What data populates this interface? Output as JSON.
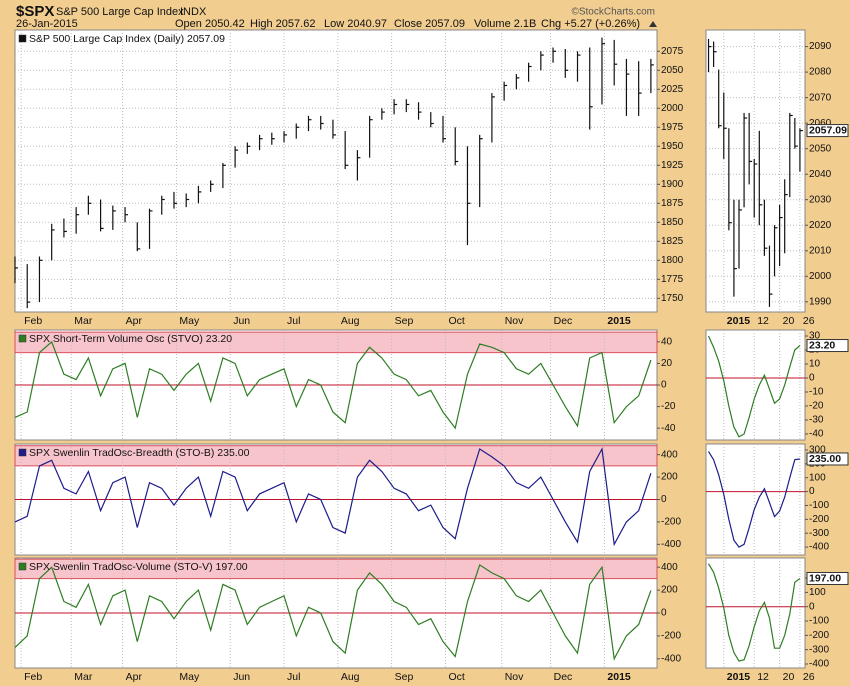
{
  "header": {
    "symbol": "$SPX",
    "name": "S&P 500 Large Cap Index",
    "exchange": "INDX",
    "credit": "©StockCharts.com",
    "date": "26-Jan-2015",
    "quote": [
      "Open 2050.42",
      "High 2057.62",
      "Low 2040.97",
      "Close 2057.09",
      "Volume 2.1B",
      "Chg +5.27 (+0.26%)"
    ]
  },
  "chart_data": [
    {
      "type": "ohlc",
      "title": "S&P 500 Large Cap Index (Daily) 2057.09",
      "color": "#111111",
      "grid": true,
      "xlim": [
        0,
        52.5
      ],
      "ylim": [
        1732,
        2103
      ],
      "xticks": [
        {
          "value": 0.5,
          "label": "Feb"
        },
        {
          "value": 4.6,
          "label": "Mar"
        },
        {
          "value": 8.8,
          "label": "Apr"
        },
        {
          "value": 13.2,
          "label": "May"
        },
        {
          "value": 17.6,
          "label": "Jun"
        },
        {
          "value": 22,
          "label": "Jul"
        },
        {
          "value": 26.4,
          "label": "Aug"
        },
        {
          "value": 30.8,
          "label": "Sep"
        },
        {
          "value": 35.2,
          "label": "Oct"
        },
        {
          "value": 39.8,
          "label": "Nov"
        },
        {
          "value": 43.8,
          "label": "Dec"
        },
        {
          "value": 48.2,
          "label": "2015"
        }
      ],
      "yticks": [
        1750,
        1775,
        1800,
        1825,
        1850,
        1875,
        1900,
        1925,
        1950,
        1975,
        2000,
        2025,
        2050,
        2075
      ],
      "x": [
        0,
        1,
        2,
        3,
        4,
        5,
        6,
        7,
        8,
        9,
        10,
        11,
        12,
        13,
        14,
        15,
        16,
        17,
        18,
        19,
        20,
        21,
        22,
        23,
        24,
        25,
        26,
        27,
        28,
        29,
        30,
        31,
        32,
        33,
        34,
        35,
        36,
        37,
        38,
        39,
        40,
        41,
        42,
        43,
        44,
        45,
        46,
        47,
        48,
        49,
        50,
        51,
        52
      ],
      "high": [
        1805,
        1795,
        1805,
        1848,
        1855,
        1870,
        1885,
        1880,
        1872,
        1870,
        1850,
        1868,
        1885,
        1890,
        1888,
        1898,
        1905,
        1928,
        1950,
        1955,
        1965,
        1968,
        1970,
        1980,
        1990,
        1990,
        1985,
        1970,
        1945,
        1990,
        2000,
        2012,
        2012,
        2008,
        1995,
        1990,
        1975,
        1950,
        1965,
        2020,
        2035,
        2045,
        2060,
        2075,
        2080,
        2078,
        2075,
        2080,
        2093,
        2090,
        2065,
        2062,
        2065
      ],
      "low": [
        1770,
        1737,
        1745,
        1800,
        1830,
        1835,
        1860,
        1838,
        1840,
        1850,
        1812,
        1815,
        1860,
        1868,
        1870,
        1875,
        1890,
        1895,
        1922,
        1940,
        1945,
        1952,
        1955,
        1960,
        1970,
        1972,
        1960,
        1920,
        1905,
        1935,
        1985,
        1992,
        1995,
        1985,
        1975,
        1955,
        1925,
        1820,
        1870,
        1955,
        2010,
        2025,
        2035,
        2050,
        2060,
        2040,
        2035,
        1972,
        2005,
        2030,
        1990,
        1990,
        2020
      ],
      "close": [
        1790,
        1745,
        1800,
        1840,
        1838,
        1860,
        1875,
        1842,
        1865,
        1860,
        1815,
        1865,
        1880,
        1875,
        1880,
        1890,
        1900,
        1925,
        1945,
        1950,
        1960,
        1960,
        1965,
        1975,
        1985,
        1980,
        1965,
        1925,
        1935,
        1985,
        1995,
        2005,
        2005,
        1995,
        1980,
        1960,
        1930,
        1875,
        1960,
        2015,
        2030,
        2040,
        2055,
        2070,
        2075,
        2050,
        2070,
        2002,
        2085,
        2058,
        2045,
        2020,
        2057.09
      ]
    },
    {
      "type": "ohlc",
      "color": "#111111",
      "grid": true,
      "xlim": [
        -0.5,
        19
      ],
      "ylim": [
        1986,
        2096.5
      ],
      "xticks": [
        {
          "value": 3,
          "label": "2015"
        },
        {
          "value": 9,
          "label": "12"
        },
        {
          "value": 14,
          "label": "20"
        },
        {
          "value": 18,
          "label": "26"
        }
      ],
      "yticks": [
        1990,
        2000,
        2010,
        2020,
        2030,
        2040,
        2050,
        2060,
        2070,
        2080,
        2090
      ],
      "last_value": 2057.09,
      "x": [
        0,
        1,
        2,
        3,
        4,
        5,
        6,
        7,
        8,
        9,
        10,
        11,
        12,
        13,
        14,
        15,
        16,
        17,
        18
      ],
      "high": [
        2093,
        2092,
        2081,
        2072,
        2058,
        2030,
        2030,
        2064,
        2064,
        2046,
        2057,
        2030,
        2012,
        2020,
        2028,
        2038,
        2064,
        2062,
        2058
      ],
      "low": [
        2080,
        2082,
        2058,
        2046,
        2018,
        1992,
        2003,
        2027,
        2036,
        2023,
        2020,
        2008,
        1988,
        2000,
        2004,
        2009,
        2031,
        2050,
        2041
      ],
      "close": [
        2090,
        2088,
        2059,
        2058,
        2021,
        2003,
        2026,
        2062,
        2045,
        2044,
        2028,
        2011,
        1993,
        2019,
        2023,
        2032,
        2063,
        2051,
        2057.09
      ]
    },
    {
      "type": "line",
      "title": "SPX Short-Term Volume Osc (STVO) 23.20",
      "color": "#2e7d23",
      "xlim": [
        0,
        52.5
      ],
      "ylim": [
        -51,
        51
      ],
      "yticks": [
        40,
        20,
        0,
        -20,
        -40
      ],
      "band": [
        30,
        49
      ],
      "reference_line": 0,
      "x": [
        0,
        1,
        2,
        3,
        4,
        5,
        6,
        7,
        8,
        9,
        10,
        11,
        12,
        13,
        14,
        15,
        16,
        17,
        18,
        19,
        20,
        21,
        22,
        23,
        24,
        25,
        26,
        27,
        28,
        29,
        30,
        31,
        32,
        33,
        34,
        35,
        36,
        37,
        38,
        39,
        40,
        41,
        42,
        43,
        44,
        45,
        46,
        47,
        48,
        49,
        50,
        51,
        52
      ],
      "values": [
        -30,
        -25,
        30,
        40,
        10,
        5,
        25,
        -10,
        15,
        20,
        -30,
        15,
        10,
        -5,
        10,
        20,
        -15,
        25,
        20,
        -10,
        5,
        10,
        15,
        -20,
        5,
        0,
        -25,
        -35,
        20,
        35,
        25,
        10,
        5,
        -10,
        -5,
        -25,
        -40,
        10,
        38,
        35,
        30,
        15,
        10,
        20,
        0,
        -20,
        -38,
        25,
        30,
        -35,
        -20,
        -10,
        23.2
      ]
    },
    {
      "type": "line",
      "color": "#2e7d23",
      "xlim": [
        -0.5,
        19
      ],
      "ylim": [
        -44.3,
        34.3
      ],
      "yticks": [
        30,
        20,
        10,
        0,
        -10,
        -20,
        -30,
        -40
      ],
      "reference_line": 0,
      "last_value": 23.2,
      "last_label": "23.20",
      "x": [
        0,
        1,
        2,
        3,
        4,
        5,
        6,
        7,
        8,
        9,
        10,
        11,
        12,
        13,
        14,
        15,
        16,
        17,
        18
      ],
      "values": [
        30,
        22,
        12,
        -2,
        -20,
        -35,
        -42,
        -40,
        -28,
        -15,
        -5,
        2,
        -8,
        -18,
        -15,
        -5,
        8,
        20,
        23.2
      ]
    },
    {
      "type": "line",
      "title": "SPX Swenlin TradOsc-Breadth (STO-B) 235.00",
      "color": "#1c1c8a",
      "xlim": [
        0,
        52.5
      ],
      "ylim": [
        -495,
        495
      ],
      "yticks": [
        400,
        200,
        0,
        -200,
        -400
      ],
      "band": [
        300,
        480
      ],
      "reference_line": 0,
      "x": [
        0,
        1,
        2,
        3,
        4,
        5,
        6,
        7,
        8,
        9,
        10,
        11,
        12,
        13,
        14,
        15,
        16,
        17,
        18,
        19,
        20,
        21,
        22,
        23,
        24,
        25,
        26,
        27,
        28,
        29,
        30,
        31,
        32,
        33,
        34,
        35,
        36,
        37,
        38,
        39,
        40,
        41,
        42,
        43,
        44,
        45,
        46,
        47,
        48,
        49,
        50,
        51,
        52
      ],
      "values": [
        -200,
        -150,
        300,
        350,
        100,
        50,
        250,
        -100,
        150,
        200,
        -250,
        150,
        100,
        -50,
        100,
        200,
        -150,
        250,
        200,
        -100,
        50,
        100,
        150,
        -200,
        50,
        0,
        -250,
        -300,
        200,
        350,
        250,
        100,
        50,
        -100,
        -50,
        -250,
        -350,
        100,
        450,
        380,
        300,
        150,
        100,
        200,
        0,
        -200,
        -380,
        250,
        450,
        -400,
        -200,
        -100,
        235
      ]
    },
    {
      "type": "line",
      "color": "#1c1c8a",
      "xlim": [
        -0.5,
        19
      ],
      "ylim": [
        -457,
        343
      ],
      "yticks": [
        300,
        200,
        100,
        0,
        -100,
        -200,
        -300,
        -400
      ],
      "reference_line": 0,
      "last_value": 235,
      "last_label": "235.00",
      "x": [
        0,
        1,
        2,
        3,
        4,
        5,
        6,
        7,
        8,
        9,
        10,
        11,
        12,
        13,
        14,
        15,
        16,
        17,
        18
      ],
      "values": [
        290,
        230,
        120,
        -20,
        -200,
        -350,
        -400,
        -380,
        -260,
        -130,
        -40,
        20,
        -80,
        -180,
        -140,
        -40,
        100,
        230,
        235
      ]
    },
    {
      "type": "line",
      "title": "SPX Swenlin TradOsc-Volume (STO-V) 197.00",
      "color": "#2e7d23",
      "xlim": [
        0,
        52.5
      ],
      "ylim": [
        -480,
        480
      ],
      "yticks": [
        400,
        200,
        0,
        -200,
        -400
      ],
      "band": [
        300,
        470
      ],
      "reference_line": 0,
      "xticks": [
        {
          "value": 0.5,
          "label": "Feb"
        },
        {
          "value": 4.6,
          "label": "Mar"
        },
        {
          "value": 8.8,
          "label": "Apr"
        },
        {
          "value": 13.2,
          "label": "May"
        },
        {
          "value": 17.6,
          "label": "Jun"
        },
        {
          "value": 22,
          "label": "Jul"
        },
        {
          "value": 26.4,
          "label": "Aug"
        },
        {
          "value": 30.8,
          "label": "Sep"
        },
        {
          "value": 35.2,
          "label": "Oct"
        },
        {
          "value": 39.8,
          "label": "Nov"
        },
        {
          "value": 43.8,
          "label": "Dec"
        },
        {
          "value": 48.2,
          "label": "2015"
        }
      ],
      "x": [
        0,
        1,
        2,
        3,
        4,
        5,
        6,
        7,
        8,
        9,
        10,
        11,
        12,
        13,
        14,
        15,
        16,
        17,
        18,
        19,
        20,
        21,
        22,
        23,
        24,
        25,
        26,
        27,
        28,
        29,
        30,
        31,
        32,
        33,
        34,
        35,
        36,
        37,
        38,
        39,
        40,
        41,
        42,
        43,
        44,
        45,
        46,
        47,
        48,
        49,
        50,
        51,
        52
      ],
      "values": [
        -300,
        -200,
        300,
        400,
        100,
        50,
        250,
        -100,
        150,
        200,
        -250,
        150,
        100,
        -50,
        100,
        200,
        -150,
        250,
        200,
        -100,
        50,
        100,
        150,
        -200,
        50,
        0,
        -250,
        -350,
        200,
        350,
        250,
        100,
        50,
        -100,
        -50,
        -250,
        -380,
        100,
        420,
        350,
        300,
        150,
        100,
        200,
        0,
        -200,
        -350,
        250,
        400,
        -400,
        -200,
        -100,
        197
      ]
    },
    {
      "type": "line",
      "color": "#2e7d23",
      "xlim": [
        -0.5,
        19
      ],
      "ylim": [
        -428,
        340
      ],
      "yticks": [
        200,
        100,
        0,
        -100,
        -200,
        -300,
        -400
      ],
      "reference_line": 0,
      "last_value": 197,
      "last_label": "197.00",
      "xticks": [
        {
          "value": 3,
          "label": "2015"
        },
        {
          "value": 9,
          "label": "12"
        },
        {
          "value": 14,
          "label": "20"
        },
        {
          "value": 18,
          "label": "26"
        }
      ],
      "x": [
        0,
        1,
        2,
        3,
        4,
        5,
        6,
        7,
        8,
        9,
        10,
        11,
        12,
        13,
        14,
        15,
        16,
        17,
        18
      ],
      "values": [
        300,
        240,
        130,
        -10,
        -200,
        -320,
        -380,
        -370,
        -270,
        -140,
        -30,
        30,
        -80,
        -290,
        -290,
        -200,
        -50,
        170,
        197
      ]
    }
  ]
}
